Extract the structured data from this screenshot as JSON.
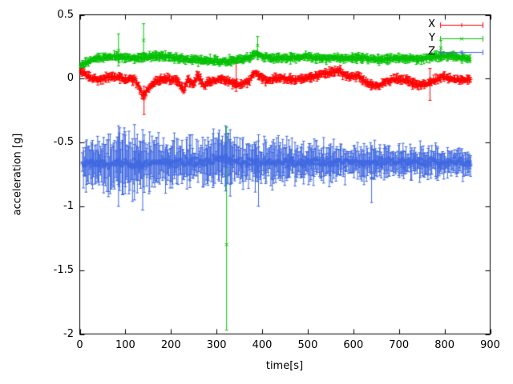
{
  "chart_data": {
    "type": "scatter",
    "style": "points-with-errorbars",
    "title": "",
    "xlabel": "time[s]",
    "ylabel": "acceleration [g]",
    "xlim": [
      0,
      900
    ],
    "ylim": [
      -2,
      0.5
    ],
    "x_ticks": [
      0,
      100,
      200,
      300,
      400,
      500,
      600,
      700,
      800,
      900
    ],
    "x_tick_labels": [
      "0",
      "100",
      "200",
      "300",
      "400",
      "500",
      "600",
      "700",
      "800",
      "900"
    ],
    "y_ticks": [
      -2,
      -1.5,
      -1,
      -0.5,
      0,
      0.5
    ],
    "y_tick_labels": [
      "-2",
      "-1.5",
      "-1",
      "-0.5",
      "0",
      "0.5"
    ],
    "grid": false,
    "legend_position": "top-right-inside",
    "frame_color": "#000000",
    "background_color": "#ffffff",
    "series": [
      {
        "name": "X",
        "color": "#ff0000",
        "marker": "plus",
        "t_start": 2,
        "t_end": 858,
        "step": 1.6,
        "noise": 0.015,
        "base": {
          "t": [
            0,
            20,
            40,
            70,
            100,
            125,
            138,
            148,
            165,
            190,
            215,
            228,
            238,
            248,
            258,
            272,
            290,
            310,
            330,
            350,
            370,
            385,
            395,
            410,
            435,
            465,
            495,
            525,
            550,
            570,
            590,
            610,
            630,
            650,
            670,
            695,
            720,
            745,
            770,
            795,
            820,
            840,
            860
          ],
          "v": [
            0.07,
            0.01,
            -0.01,
            0.02,
            0.0,
            -0.02,
            -0.14,
            -0.09,
            -0.02,
            0.0,
            -0.02,
            -0.09,
            0.0,
            -0.06,
            0.03,
            -0.05,
            -0.02,
            0.0,
            -0.03,
            -0.05,
            -0.02,
            0.05,
            0.02,
            -0.02,
            0.01,
            -0.01,
            0.0,
            0.03,
            0.05,
            0.06,
            0.01,
            0.02,
            -0.03,
            -0.06,
            -0.03,
            0.0,
            -0.02,
            -0.05,
            -0.03,
            0.02,
            0.0,
            -0.01,
            0.0
          ]
        },
        "err": {
          "t": [
            0,
            860
          ],
          "v": [
            0.025,
            0.025
          ]
        },
        "outliers": [
          {
            "t": 141,
            "v": -0.16,
            "lo": -0.28,
            "hi": -0.06
          },
          {
            "t": 343,
            "v": -0.02,
            "lo": -0.1,
            "hi": 0.12
          },
          {
            "t": 768,
            "v": -0.04,
            "lo": -0.17,
            "hi": 0.08
          }
        ]
      },
      {
        "name": "Y",
        "color": "#00c000",
        "marker": "cross",
        "t_start": 2,
        "t_end": 858,
        "step": 1.6,
        "noise": 0.012,
        "base": {
          "t": [
            0,
            15,
            35,
            60,
            90,
            120,
            150,
            180,
            210,
            240,
            270,
            300,
            322,
            345,
            370,
            388,
            400,
            430,
            460,
            500,
            540,
            580,
            620,
            660,
            700,
            740,
            780,
            810,
            840,
            860
          ],
          "v": [
            0.1,
            0.13,
            0.16,
            0.17,
            0.17,
            0.16,
            0.17,
            0.18,
            0.16,
            0.15,
            0.14,
            0.14,
            0.13,
            0.15,
            0.16,
            0.2,
            0.17,
            0.16,
            0.16,
            0.17,
            0.16,
            0.16,
            0.16,
            0.15,
            0.16,
            0.15,
            0.17,
            0.18,
            0.16,
            0.15
          ]
        },
        "err": {
          "t": [
            0,
            860
          ],
          "v": [
            0.025,
            0.025
          ]
        },
        "outliers": [
          {
            "t": 85,
            "v": 0.22,
            "lo": 0.1,
            "hi": 0.35
          },
          {
            "t": 140,
            "v": 0.3,
            "lo": 0.17,
            "hi": 0.43
          },
          {
            "t": 322,
            "v": -1.3,
            "lo": -1.97,
            "hi": -0.38
          },
          {
            "t": 390,
            "v": 0.26,
            "lo": 0.16,
            "hi": 0.33
          },
          {
            "t": 792,
            "v": 0.24,
            "lo": 0.14,
            "hi": 0.3
          }
        ]
      },
      {
        "name": "Z",
        "color": "#4169e1",
        "marker": "star",
        "t_start": 6,
        "t_end": 858,
        "step": 1.6,
        "noise": 0.032,
        "base": {
          "t": [
            0,
            30,
            60,
            90,
            120,
            150,
            180,
            210,
            240,
            270,
            300,
            320,
            340,
            365,
            390,
            420,
            450,
            480,
            510,
            540,
            570,
            600,
            630,
            660,
            690,
            720,
            750,
            780,
            810,
            840,
            860
          ],
          "v": [
            -0.67,
            -0.66,
            -0.665,
            -0.66,
            -0.67,
            -0.665,
            -0.65,
            -0.66,
            -0.655,
            -0.66,
            -0.64,
            -0.63,
            -0.65,
            -0.655,
            -0.665,
            -0.65,
            -0.655,
            -0.66,
            -0.65,
            -0.66,
            -0.655,
            -0.66,
            -0.665,
            -0.65,
            -0.65,
            -0.655,
            -0.65,
            -0.655,
            -0.65,
            -0.655,
            -0.65
          ]
        },
        "err": {
          "t": [
            0,
            60,
            120,
            200,
            300,
            400,
            500,
            600,
            700,
            800,
            860
          ],
          "v": [
            0.12,
            0.16,
            0.17,
            0.14,
            0.15,
            0.13,
            0.12,
            0.1,
            0.09,
            0.085,
            0.08
          ]
        },
        "outliers": [
          {
            "t": 85,
            "v": -0.66,
            "lo": -1.0,
            "hi": -0.37
          },
          {
            "t": 120,
            "v": -0.63,
            "lo": -0.95,
            "hi": -0.36
          },
          {
            "t": 138,
            "v": -0.7,
            "lo": -1.03,
            "hi": -0.4
          },
          {
            "t": 320,
            "v": -0.6,
            "lo": -0.88,
            "hi": -0.37
          },
          {
            "t": 330,
            "v": -0.64,
            "lo": -0.92,
            "hi": -0.4
          },
          {
            "t": 392,
            "v": -0.72,
            "lo": -1.0,
            "hi": -0.44
          },
          {
            "t": 640,
            "v": -0.78,
            "lo": -0.97,
            "hi": -0.55
          }
        ]
      }
    ]
  }
}
